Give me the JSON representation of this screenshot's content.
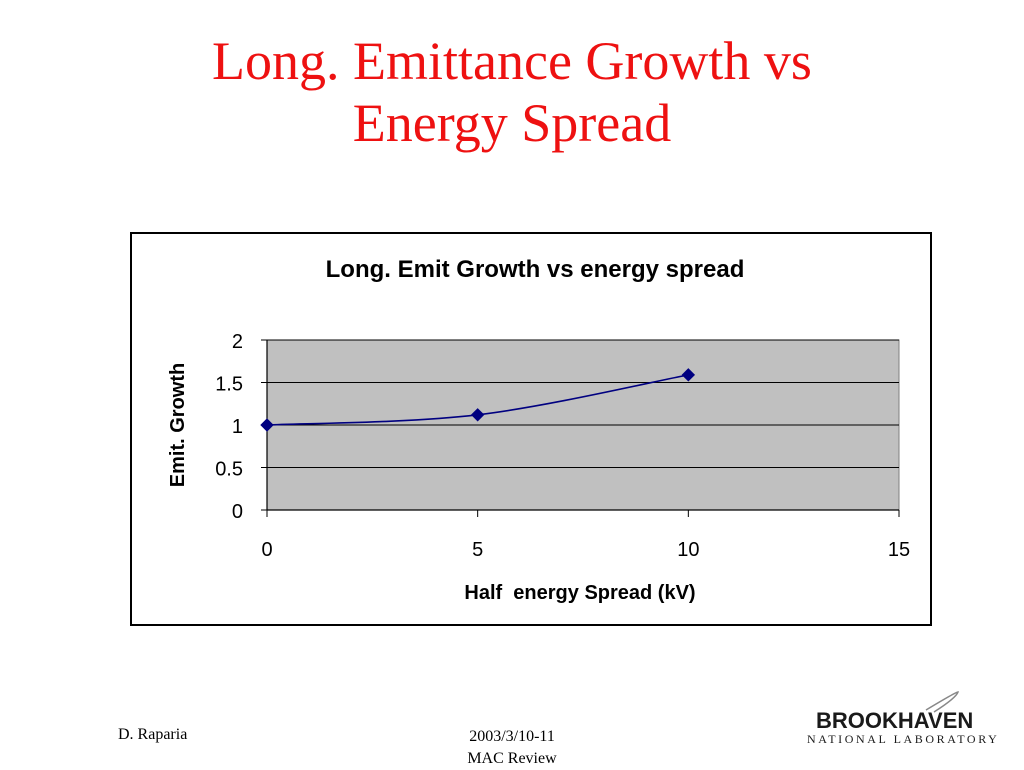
{
  "slide": {
    "title_line1": "Long. Emittance Growth vs",
    "title_line2": "Energy Spread",
    "title_color": "#ee1111"
  },
  "footer": {
    "author": "D. Raparia",
    "date": "2003/3/10-11",
    "event": "MAC Review"
  },
  "logo": {
    "name": "BROOKHAVEN",
    "subtitle": "NATIONAL LABORATORY"
  },
  "chart_data": {
    "type": "line",
    "title": "Long. Emit Growth vs energy spread",
    "xlabel": "Half  energy Spread (kV)",
    "ylabel": "Emit. Growth",
    "xlim": [
      0,
      15
    ],
    "ylim": [
      0,
      2
    ],
    "xticks": [
      "0",
      "5",
      "10",
      "15"
    ],
    "yticks": [
      "0",
      "0.5",
      "1",
      "1.5",
      "2"
    ],
    "grid": true,
    "legend": "none",
    "plot_background": "#c0c0c0",
    "series": [
      {
        "color": "#000080",
        "marker": "diamond",
        "smooth": true,
        "x": [
          0,
          5,
          10
        ],
        "y": [
          1.0,
          1.12,
          1.59
        ]
      }
    ]
  }
}
